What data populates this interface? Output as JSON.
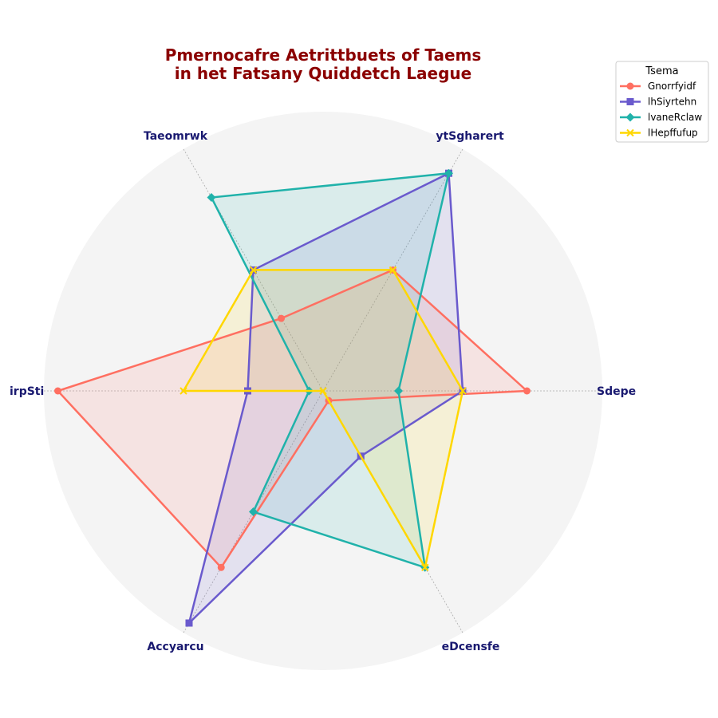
{
  "chart_data": {
    "type": "radar",
    "title_lines": [
      "Pmernocafre Aetrittbuets of Taems",
      "in het Fatsany Quiddetch Laegue"
    ],
    "axes": [
      "Sdepe",
      "ytSgharert",
      "Taeomrwk",
      "irpSti",
      "Accyarcu",
      "eDcensfe"
    ],
    "rmax": 10,
    "series": [
      {
        "name": "Gnorrfyidf",
        "values": [
          7.3,
          5.0,
          3.0,
          9.5,
          7.3,
          0.4
        ],
        "marker": "circle",
        "color": "#ff6f61"
      },
      {
        "name": "lhSiyrtehn",
        "values": [
          5.0,
          9.0,
          5.0,
          2.7,
          9.6,
          2.7
        ],
        "marker": "square",
        "color": "#6a5acd"
      },
      {
        "name": "lvaneRclaw",
        "values": [
          2.7,
          9.0,
          8.0,
          0.5,
          5.0,
          7.3
        ],
        "marker": "diamond",
        "color": "#20b2aa"
      },
      {
        "name": "lHepffufup",
        "values": [
          5.0,
          5.0,
          5.0,
          5.0,
          0.0,
          7.3
        ],
        "marker": "x",
        "color": "#ffd700"
      }
    ],
    "legend": {
      "title": "Tsema",
      "placement": "top-right"
    },
    "colors": {
      "title": "#8b0000",
      "axis_label": "#191970",
      "background_disc": "#f4f4f4",
      "grid": "#aaaaaa"
    }
  }
}
